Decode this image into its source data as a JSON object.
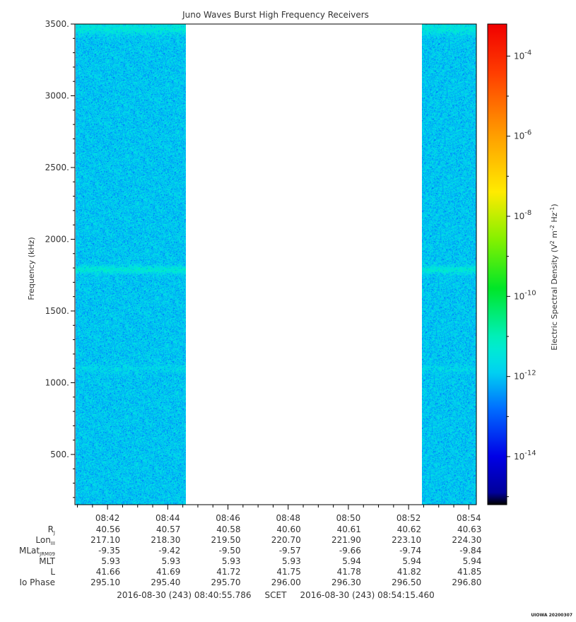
{
  "chart_data": {
    "type": "heatmap",
    "title": "Juno Waves Burst High Frequency Receivers",
    "ylabel": "Frequency (kHz)",
    "ylim": [
      150,
      3500
    ],
    "yticks": [
      500,
      1000,
      1500,
      2000,
      2500,
      3000,
      3500
    ],
    "ytick_labels": [
      "500.",
      "1000.",
      "1500.",
      "2000.",
      "2500.",
      "3000.",
      "3500."
    ],
    "x_time_start": "08:40:55",
    "x_time_end": "08:54:15",
    "x_ticks": [
      "08:42",
      "08:44",
      "08:46",
      "08:48",
      "08:50",
      "08:52",
      "08:54"
    ],
    "data_intervals": [
      {
        "start": "08:40:55",
        "end": "08:44:25"
      },
      {
        "start": "08:52:45",
        "end": "08:54:15"
      }
    ],
    "gap": {
      "start": "08:44:25",
      "end": "08:52:45",
      "note": "no data"
    },
    "typical_log_density": -11.8,
    "enhanced_bands_khz": [
      {
        "center": 3470,
        "log_density": -11.3
      },
      {
        "center": 1790,
        "log_density": -11.2
      },
      {
        "center": 1100,
        "log_density": -11.6
      }
    ],
    "colorbar": {
      "label": "Electric Spectral Density (V² m⁻² Hz⁻¹)",
      "label_parts": {
        "a": "Electric Spectral Density (V",
        "b": "2",
        "c": " m",
        "d": "-2",
        "e": " Hz",
        "f": "-1",
        "g": ")"
      },
      "log_range": [
        -15.2,
        -3.2
      ],
      "ticks": [
        -14,
        -12,
        -10,
        -8,
        -6,
        -4
      ],
      "tick_base": "10",
      "tick_exponents": [
        "-14",
        "-12",
        "-10",
        "-8",
        "-6",
        "-4"
      ],
      "colormap": "rainbow"
    },
    "ephemeris": {
      "rows": [
        {
          "label": "R",
          "sub": "J",
          "values": [
            "40.56",
            "40.57",
            "40.58",
            "40.60",
            "40.61",
            "40.62",
            "40.63"
          ]
        },
        {
          "label": "Lon",
          "sub": "III",
          "values": [
            "217.10",
            "218.30",
            "219.50",
            "220.70",
            "221.90",
            "223.10",
            "224.30"
          ]
        },
        {
          "label": "MLat",
          "sub": "JRM09",
          "values": [
            "-9.35",
            "-9.42",
            "-9.50",
            "-9.57",
            "-9.66",
            "-9.74",
            "-9.84"
          ]
        },
        {
          "label": "MLT",
          "sub": "",
          "values": [
            "5.93",
            "5.93",
            "5.93",
            "5.93",
            "5.94",
            "5.94",
            "5.94"
          ]
        },
        {
          "label": "L",
          "sub": "",
          "values": [
            "41.66",
            "41.69",
            "41.72",
            "41.75",
            "41.78",
            "41.82",
            "41.85"
          ]
        },
        {
          "label": "Io Phase",
          "sub": "",
          "values": [
            "295.10",
            "295.40",
            "295.70",
            "296.00",
            "296.30",
            "296.50",
            "296.80"
          ]
        }
      ]
    },
    "time_range_text": "2016-08-30 (243) 08:40:55.786     SCET     2016-08-30 (243) 08:54:15.460",
    "credit": "UIOWA 20200307"
  }
}
